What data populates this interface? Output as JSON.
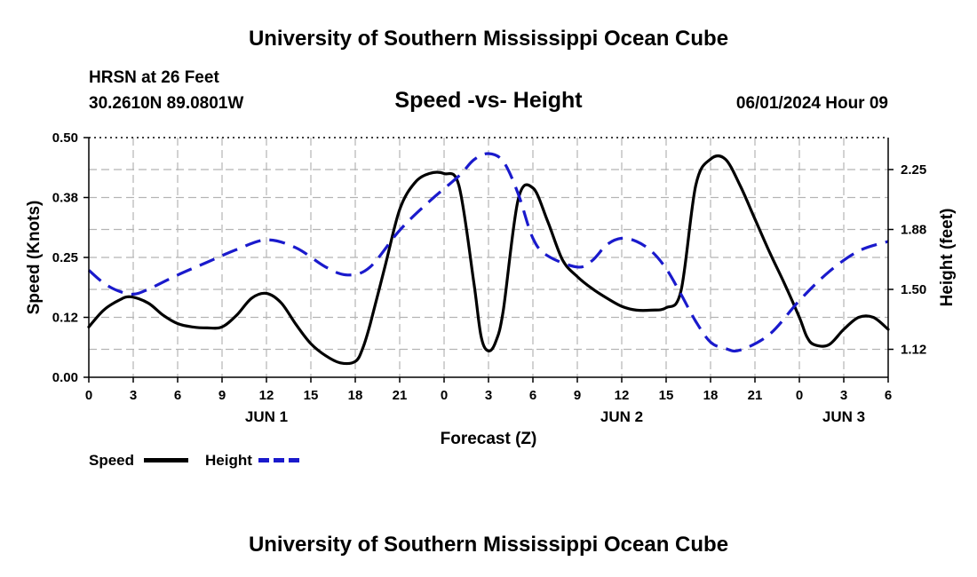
{
  "header": {
    "title_top": "University of Southern Mississippi Ocean Cube",
    "station": "HRSN at 26 Feet",
    "coords": "30.2610N  89.0801W",
    "subtitle": "Speed -vs- Height",
    "datetime": "06/01/2024 Hour 09"
  },
  "footer": {
    "title_bottom": "University of Southern Mississippi Ocean Cube"
  },
  "legend": {
    "speed_label": "Speed",
    "height_label": "Height"
  },
  "colors": {
    "speed": "#000000",
    "height": "#1a1acc",
    "grid": "#b4b4b4"
  },
  "chart_data": {
    "type": "line",
    "xlabel": "Forecast (Z)",
    "ylabel_left": "Speed (Knots)",
    "ylabel_right": "Height (feet)",
    "x_unit": "hours from JUN 1 00Z",
    "xlim": [
      0,
      54
    ],
    "ylim_left": [
      0,
      0.5
    ],
    "ylim_right": [
      0.95,
      2.45
    ],
    "x_ticks": [
      0,
      3,
      6,
      9,
      12,
      15,
      18,
      21,
      24,
      27,
      30,
      33,
      36,
      39,
      42,
      45,
      48,
      51,
      54
    ],
    "x_tick_labels": [
      "0",
      "3",
      "6",
      "9",
      "12",
      "15",
      "18",
      "21",
      "0",
      "3",
      "6",
      "9",
      "12",
      "15",
      "18",
      "21",
      "0",
      "3",
      "6"
    ],
    "left_ticks": [
      0,
      0.125,
      0.25,
      0.375,
      0.5
    ],
    "left_tick_labels": [
      "0.00",
      "0.12",
      "0.25",
      "0.38",
      "0.50"
    ],
    "right_ticks": [
      1.125,
      1.5,
      1.875,
      2.25
    ],
    "right_tick_labels": [
      "1.12",
      "1.50",
      "1.88",
      "2.25"
    ],
    "day_labels": [
      {
        "x": 12,
        "label": "JUN 1"
      },
      {
        "x": 36,
        "label": "JUN 2"
      },
      {
        "x": 51,
        "label": "JUN 3"
      }
    ],
    "series": [
      {
        "name": "Speed",
        "axis": "left",
        "style": "solid",
        "x": [
          0,
          1,
          2,
          2.8,
          4,
          5,
          6,
          7,
          8,
          9,
          10,
          11,
          12,
          13,
          14,
          15,
          16,
          17,
          18,
          18.5,
          19,
          20,
          21,
          22,
          23,
          24,
          25,
          26,
          26.5,
          27,
          27.5,
          28,
          29,
          30,
          31,
          32,
          33,
          34,
          35,
          36,
          37,
          38,
          39,
          40,
          41,
          42,
          43,
          44,
          45,
          46,
          47,
          48,
          48.5,
          49,
          50,
          51,
          52,
          53,
          54
        ],
        "values": [
          0.105,
          0.14,
          0.16,
          0.168,
          0.155,
          0.13,
          0.112,
          0.105,
          0.103,
          0.105,
          0.13,
          0.165,
          0.175,
          0.155,
          0.11,
          0.07,
          0.045,
          0.03,
          0.033,
          0.06,
          0.11,
          0.23,
          0.35,
          0.405,
          0.425,
          0.425,
          0.4,
          0.2,
          0.085,
          0.055,
          0.075,
          0.14,
          0.37,
          0.395,
          0.325,
          0.245,
          0.21,
          0.185,
          0.165,
          0.148,
          0.14,
          0.14,
          0.145,
          0.18,
          0.4,
          0.455,
          0.455,
          0.4,
          0.33,
          0.26,
          0.195,
          0.125,
          0.085,
          0.068,
          0.068,
          0.1,
          0.125,
          0.125,
          0.1
        ]
      },
      {
        "name": "Height",
        "axis": "right",
        "style": "dashed",
        "x": [
          0,
          1,
          2,
          3,
          4,
          6,
          8,
          10,
          12,
          14,
          16,
          17.5,
          19,
          21,
          23,
          25,
          26,
          27,
          28,
          29,
          30,
          31,
          33,
          34,
          35,
          36,
          37,
          38,
          39,
          40,
          41,
          42,
          43,
          44,
          46,
          48,
          50,
          52,
          54
        ],
        "values": [
          1.62,
          1.54,
          1.49,
          1.47,
          1.5,
          1.59,
          1.67,
          1.75,
          1.81,
          1.76,
          1.64,
          1.59,
          1.64,
          1.87,
          2.05,
          2.21,
          2.31,
          2.35,
          2.3,
          2.1,
          1.82,
          1.71,
          1.64,
          1.68,
          1.78,
          1.82,
          1.8,
          1.74,
          1.63,
          1.47,
          1.3,
          1.17,
          1.13,
          1.12,
          1.22,
          1.43,
          1.61,
          1.74,
          1.8
        ]
      }
    ]
  }
}
